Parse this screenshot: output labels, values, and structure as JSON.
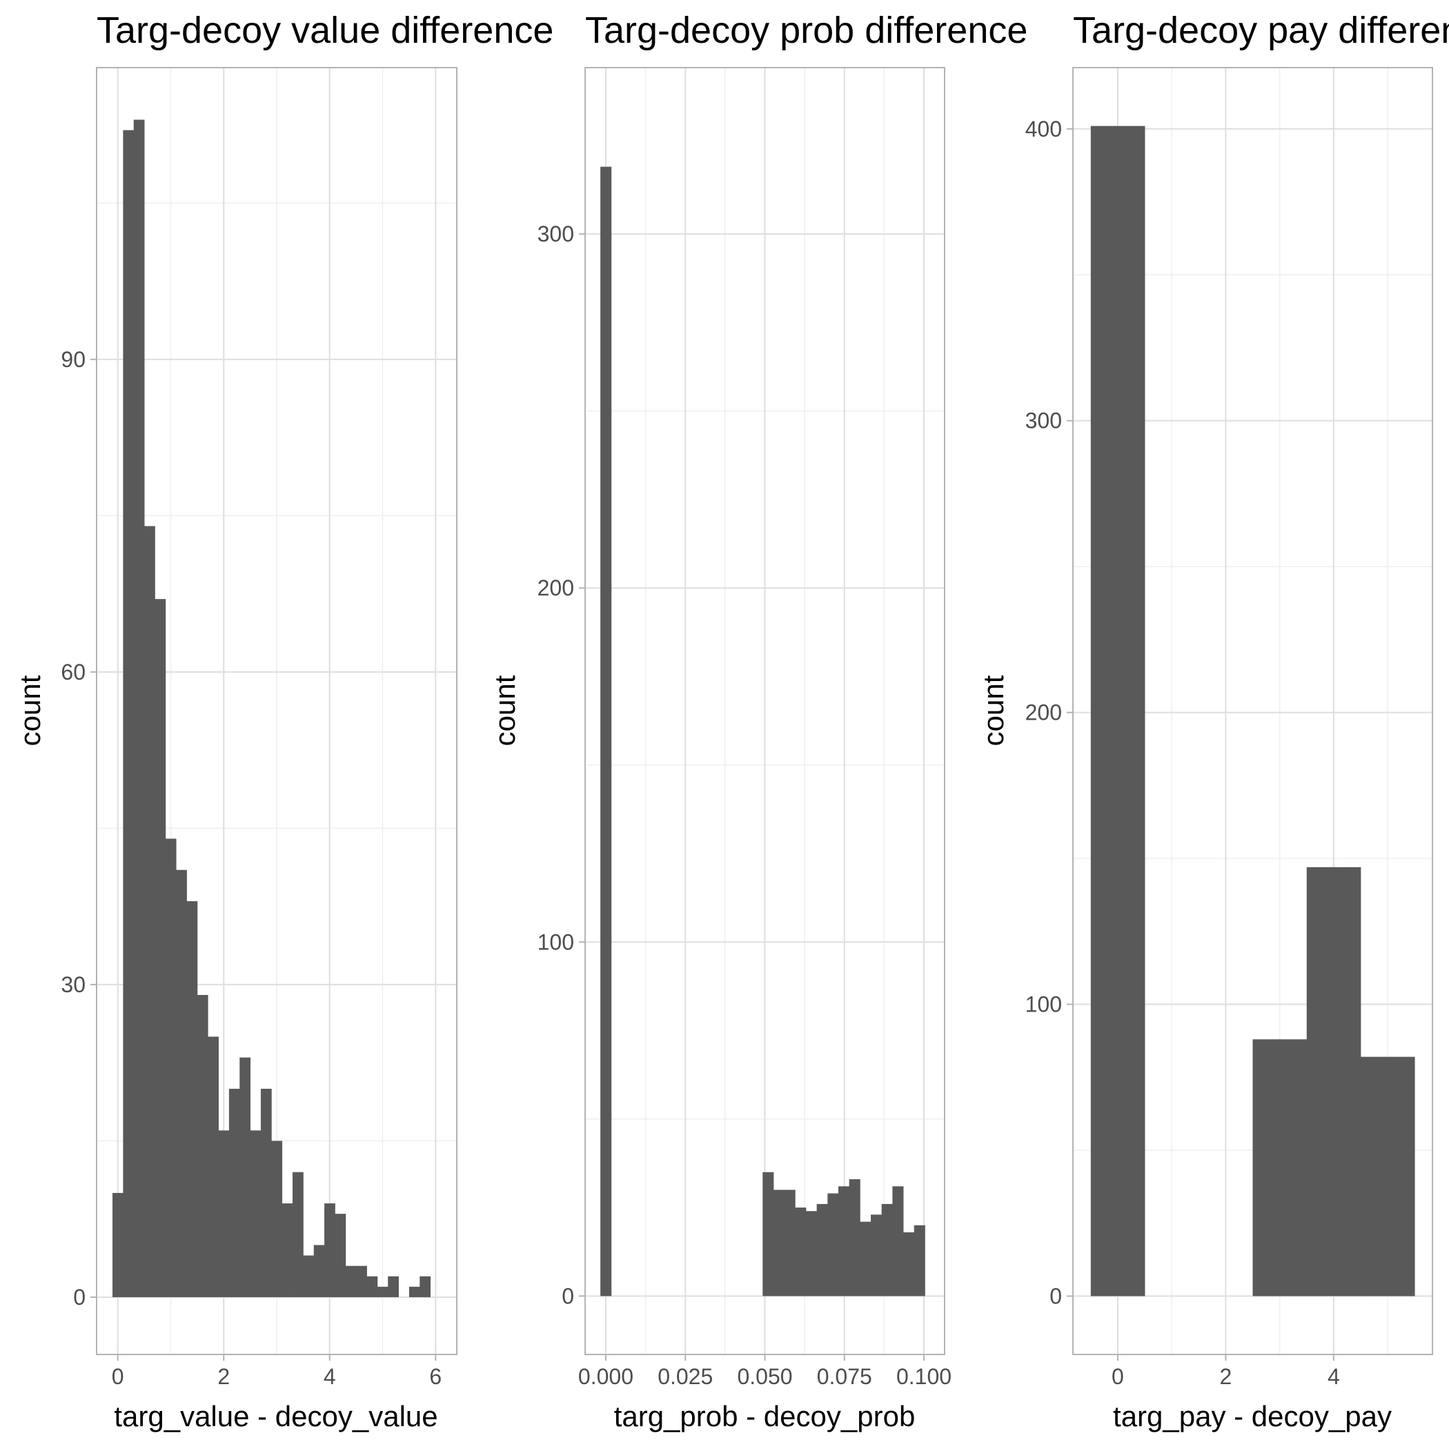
{
  "colors": {
    "bar": "#595959",
    "grid_major": "#dedede",
    "grid_minor": "#efefef",
    "panel_border": "#b3b3b3",
    "tick_text": "#4d4d4d"
  },
  "chart_data": [
    {
      "type": "bar",
      "title": "Targ-decoy value difference",
      "xlabel": "targ_value - decoy_value",
      "ylabel": "count",
      "xlim": [
        -0.4,
        6.4
      ],
      "ylim": [
        -5.5,
        118
      ],
      "x_ticks": [
        0,
        2,
        4,
        6
      ],
      "x_tick_labels": [
        "0",
        "2",
        "4",
        "6"
      ],
      "y_ticks": [
        0,
        30,
        60,
        90
      ],
      "y_tick_labels": [
        "0",
        "30",
        "60",
        "90"
      ],
      "grid": true,
      "bin_width": 0.2,
      "x_start": -0.1,
      "values": [
        10,
        112,
        113,
        74,
        67,
        44,
        41,
        38,
        29,
        25,
        16,
        20,
        23,
        16,
        20,
        15,
        9,
        12,
        4,
        5,
        9,
        8,
        3,
        3,
        2,
        1,
        2,
        0,
        1,
        2
      ]
    },
    {
      "type": "bar",
      "title": "Targ-decoy prob difference",
      "xlabel": "targ_prob - decoy_prob",
      "ylabel": "count",
      "xlim": [
        -0.0065,
        0.1065
      ],
      "ylim": [
        -16.5,
        347
      ],
      "x_ticks": [
        0,
        0.025,
        0.05,
        0.075,
        0.1
      ],
      "x_tick_labels": [
        "0.000",
        "0.025",
        "0.050",
        "0.075",
        "0.100"
      ],
      "y_ticks": [
        0,
        100,
        200,
        300
      ],
      "y_tick_labels": [
        "0",
        "100",
        "200",
        "300"
      ],
      "grid": true,
      "bin_width": 0.0034,
      "x_start": -0.0017,
      "values": [
        319,
        0,
        0,
        0,
        0,
        0,
        0,
        0,
        0,
        0,
        0,
        0,
        0,
        0,
        0,
        35,
        30,
        30,
        25,
        24,
        26,
        29,
        31,
        33,
        21,
        23,
        26,
        31,
        18,
        20
      ]
    },
    {
      "type": "bar",
      "title": "Targ-decoy pay difference",
      "xlabel": "targ_pay - decoy_pay",
      "ylabel": "count",
      "xlim": [
        -0.83,
        5.83
      ],
      "ylim": [
        -20,
        421
      ],
      "x_ticks": [
        0,
        2,
        4
      ],
      "x_tick_labels": [
        "0",
        "2",
        "4"
      ],
      "y_ticks": [
        0,
        100,
        200,
        300,
        400
      ],
      "y_tick_labels": [
        "0",
        "100",
        "200",
        "300",
        "400"
      ],
      "grid": true,
      "bin_width": 1,
      "x_start": -0.5,
      "values": [
        401,
        0,
        0,
        88,
        147,
        82
      ]
    }
  ]
}
